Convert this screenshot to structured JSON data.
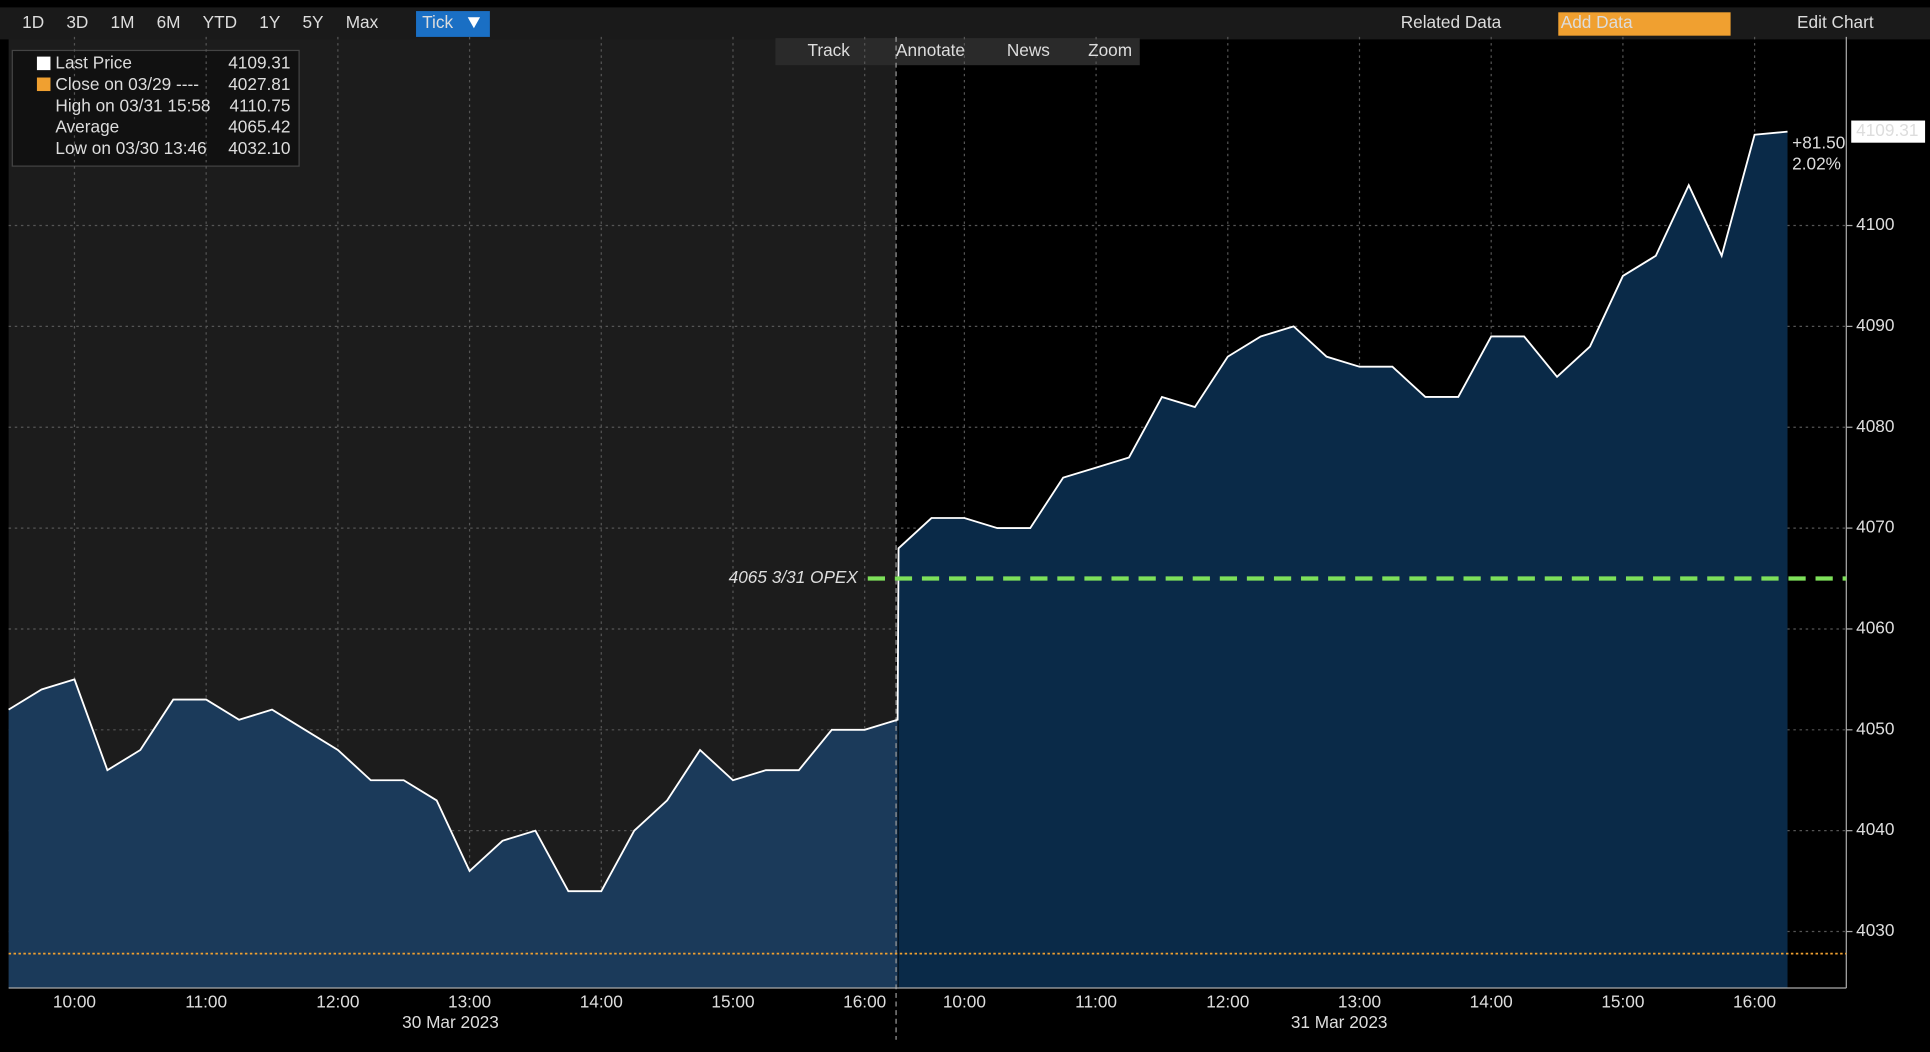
{
  "toolbar": {
    "ranges": [
      "1D",
      "3D",
      "1M",
      "6M",
      "YTD",
      "1Y",
      "5Y",
      "Max"
    ],
    "active": "Tick",
    "related": "Related Data",
    "add_data": "Add Data",
    "edit": "Edit Chart"
  },
  "chart_tools": [
    "Track",
    "Annotate",
    "News",
    "Zoom"
  ],
  "legend": [
    {
      "value": "4109.31"
    },
    {
      "label": "Close on 03/29 ----",
      "value": "4027.81"
    },
    {
      "label": "High on 03/31 15:58",
      "value": "4110.75"
    },
    {
      "label": "Average",
      "value": "4065.42"
    },
    {
      "label": "Low on 03/30 13:46",
      "value": "4032.10"
    }
  ],
  "chart_data": {
    "type": "area",
    "categories": [
      null,
      null,
      "10:00",
      null,
      null,
      null,
      "11:00",
      null,
      null,
      null,
      "12:00",
      null,
      null,
      null,
      "13:00",
      null,
      null,
      null,
      "14:00",
      null,
      null,
      null,
      "15:00",
      null,
      null,
      null,
      "16:00",
      null,
      null,
      null,
      "10:00",
      null,
      null,
      null,
      "11:00",
      null,
      null,
      null,
      "12:00",
      null,
      null,
      null,
      "13:00",
      null,
      null,
      null,
      "14:00",
      null,
      null,
      null,
      "15:00",
      null,
      null,
      null,
      "16:00",
      null
    ],
    "dates": [
      "30 Mar 2023",
      "31 Mar 2023"
    ],
    "series": [
      {
        "name": "Last Price",
        "color": "#ffffff",
        "values": [
          4052,
          4054,
          4055,
          4046,
          4048,
          4053,
          4053,
          4051,
          4052,
          4050,
          4048,
          4045,
          4045,
          4043,
          4036,
          4039,
          4040,
          4034,
          4034,
          4040,
          4043,
          4048,
          4045,
          4046,
          4046,
          4050,
          4050,
          4051,
          4068,
          4071,
          4071,
          4070,
          4070,
          4075,
          4076,
          4077,
          4083,
          4082,
          4087,
          4089,
          4090,
          4087,
          4086,
          4086,
          4083,
          4083,
          4089,
          4089,
          4085,
          4088,
          4095,
          4097,
          4104,
          4097,
          4109,
          4109.31
        ]
      }
    ],
    "ylim": [
      4024.4,
      4118.7
    ],
    "yticks": [
      4030,
      4040,
      4050,
      4060,
      4070,
      4080,
      4090,
      4100
    ],
    "grid": true,
    "last_price_label": "4109.31",
    "change_label": "+81.50",
    "change_pct_label": "2.02%",
    "reference_lines": [
      {
        "value": 4027.81,
        "color": "#f0a030"
      },
      {
        "value": 4065,
        "label": "4065 3/31 OPEX",
        "color": "#7ee05a"
      }
    ]
  }
}
